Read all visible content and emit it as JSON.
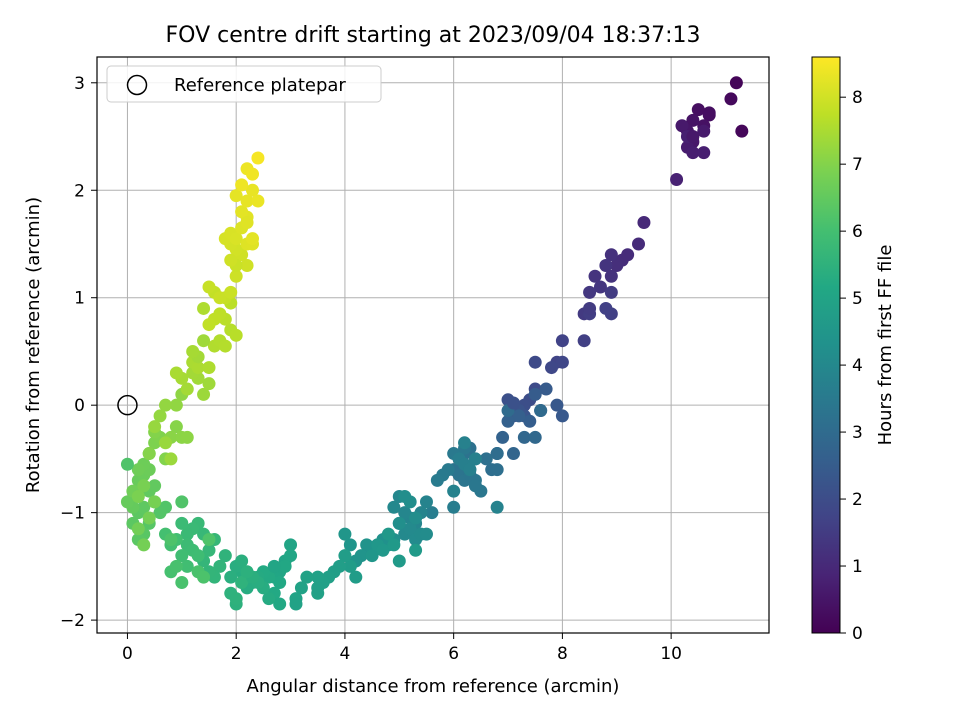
{
  "chart_data": {
    "type": "scatter",
    "title": "FOV centre drift starting at 2023/09/04 18:37:13",
    "xlabel": "Angular distance from reference (arcmin)",
    "ylabel": "Rotation from reference (arcmin)",
    "xlim": [
      -0.56,
      11.8
    ],
    "ylim": [
      -2.12,
      3.24
    ],
    "x_ticks": [
      0,
      2,
      4,
      6,
      8,
      10
    ],
    "y_ticks": [
      -2,
      -1,
      0,
      1,
      2,
      3
    ],
    "grid": true,
    "legend": {
      "placement": "top-left",
      "entries": [
        "Reference platepar"
      ]
    },
    "reference_point": {
      "x": 0,
      "y": 0,
      "label": "Reference platepar"
    },
    "colorbar": {
      "label": "Hours from first FF file",
      "colormap": "viridis",
      "range": [
        0,
        8.6
      ],
      "ticks": [
        0,
        1,
        2,
        3,
        4,
        5,
        6,
        7,
        8
      ]
    },
    "series": [
      {
        "x": [
          11.2,
          11.3,
          11.1,
          10.7,
          10.5,
          10.6,
          10.4,
          10.3,
          10.4,
          10.2,
          10.6,
          10.3,
          10.4,
          10.6,
          10.3,
          10.1,
          10.7,
          10.4
        ],
        "y": [
          3.0,
          2.55,
          2.85,
          2.7,
          2.75,
          2.6,
          2.65,
          2.55,
          2.45,
          2.6,
          2.55,
          2.4,
          2.35,
          2.35,
          2.5,
          2.1,
          2.72,
          2.5
        ],
        "hours": [
          0.1,
          0.15,
          0.2,
          0.3,
          0.35,
          0.4,
          0.45,
          0.5,
          0.55,
          0.6,
          0.62,
          0.65,
          0.7,
          0.72,
          0.75,
          0.8,
          0.33,
          0.58
        ]
      },
      {
        "x": [
          9.5,
          9.4,
          9.1,
          9.0,
          8.9,
          8.9,
          8.8,
          8.7,
          8.5,
          8.4,
          8.9,
          8.5,
          8.4,
          8.9,
          8.8,
          9.2,
          8.6,
          8.5
        ],
        "y": [
          1.7,
          1.5,
          1.35,
          1.3,
          1.4,
          1.2,
          1.3,
          1.1,
          1.05,
          0.85,
          1.05,
          0.85,
          0.6,
          0.85,
          0.9,
          1.4,
          1.2,
          0.9
        ],
        "hours": [
          1.0,
          1.05,
          1.1,
          1.15,
          1.2,
          1.25,
          1.3,
          1.35,
          1.4,
          1.45,
          1.5,
          1.55,
          1.6,
          1.62,
          1.65,
          1.08,
          1.28,
          1.5
        ]
      },
      {
        "x": [
          8.0,
          7.9,
          8.0,
          7.8,
          7.5,
          7.5,
          7.4,
          7.3,
          7.0,
          7.1,
          7.2,
          7.3,
          7.6,
          7.9,
          8.0,
          7.7,
          7.5,
          7.4,
          7.2,
          7.0,
          6.9,
          6.8,
          7.1,
          7.3,
          7.5,
          7.6,
          7.0,
          7.1
        ],
        "y": [
          0.6,
          0.4,
          0.4,
          0.35,
          0.4,
          0.15,
          0.05,
          0.0,
          0.05,
          -0.1,
          -0.05,
          -0.1,
          -0.05,
          0.0,
          -0.1,
          0.15,
          0.1,
          -0.15,
          -0.1,
          -0.15,
          -0.3,
          -0.45,
          -0.45,
          -0.3,
          -0.3,
          -0.05,
          -0.05,
          0.02
        ],
        "hours": [
          1.7,
          1.75,
          1.8,
          1.85,
          1.9,
          1.95,
          2.0,
          2.05,
          2.1,
          2.15,
          2.2,
          2.25,
          2.3,
          2.35,
          2.4,
          2.45,
          2.5,
          2.55,
          2.6,
          2.65,
          2.7,
          2.75,
          2.8,
          2.85,
          2.9,
          2.95,
          3.0,
          2.12
        ]
      },
      {
        "x": [
          6.8,
          6.7,
          6.8,
          6.6,
          6.4,
          6.3,
          6.2,
          6.1,
          6.0,
          6.1,
          6.2,
          6.3,
          6.4,
          6.5,
          6.4,
          6.2,
          6.0,
          5.9,
          5.8,
          5.7,
          5.6,
          6.0,
          6.1,
          6.2,
          6.3,
          6.4,
          6.2,
          6.0
        ],
        "y": [
          -0.45,
          -0.6,
          -0.6,
          -0.5,
          -0.5,
          -0.4,
          -0.45,
          -0.5,
          -0.6,
          -0.65,
          -0.7,
          -0.65,
          -0.7,
          -0.8,
          -0.75,
          -0.4,
          -0.45,
          -0.6,
          -0.65,
          -0.7,
          -1.0,
          -0.95,
          -0.5,
          -0.55,
          -0.6,
          -0.5,
          -0.35,
          -0.8
        ],
        "hours": [
          3.05,
          3.1,
          3.12,
          3.15,
          3.18,
          3.2,
          3.22,
          3.25,
          3.28,
          3.3,
          3.32,
          3.35,
          3.38,
          3.4,
          3.42,
          3.45,
          3.48,
          3.5,
          3.52,
          3.55,
          3.6,
          3.62,
          3.65,
          3.68,
          3.7,
          3.72,
          3.75,
          3.78
        ]
      },
      {
        "x": [
          6.8,
          5.5,
          5.4,
          5.3,
          5.2,
          5.1,
          5.0,
          4.9,
          5.0,
          5.1,
          5.2,
          5.3,
          5.4,
          5.5,
          5.3,
          5.2,
          5.1,
          5.0,
          4.9,
          4.8,
          4.7,
          4.6,
          4.5,
          4.4,
          4.3,
          4.2,
          4.1,
          4.0,
          4.5,
          4.6,
          4.7,
          4.8,
          4.9,
          5.0,
          5.3
        ],
        "y": [
          -0.95,
          -0.9,
          -1.0,
          -1.1,
          -1.05,
          -1.0,
          -0.85,
          -0.95,
          -1.1,
          -1.2,
          -1.15,
          -1.25,
          -1.2,
          -1.2,
          -1.05,
          -0.9,
          -0.85,
          -1.1,
          -1.25,
          -1.3,
          -1.25,
          -1.3,
          -1.35,
          -1.3,
          -1.4,
          -1.45,
          -1.3,
          -1.2,
          -1.4,
          -1.3,
          -1.35,
          -1.2,
          -1.3,
          -1.45,
          -1.35
        ],
        "hours": [
          3.8,
          3.82,
          3.85,
          3.88,
          3.9,
          3.92,
          3.95,
          3.98,
          4.0,
          4.02,
          4.05,
          4.08,
          4.1,
          4.12,
          4.15,
          4.18,
          4.2,
          4.22,
          4.25,
          4.28,
          4.3,
          4.32,
          4.35,
          4.38,
          4.4,
          4.42,
          4.45,
          4.48,
          4.5,
          4.52,
          4.55,
          4.58,
          4.6,
          4.62,
          4.65
        ]
      },
      {
        "x": [
          4.2,
          4.1,
          4.0,
          3.9,
          3.8,
          3.7,
          3.6,
          3.5,
          3.5,
          3.3,
          3.2,
          3.1,
          3.0,
          2.9,
          2.8,
          2.7,
          3.0,
          2.9,
          2.8,
          2.7,
          2.6,
          2.5,
          2.4,
          2.3,
          2.2,
          2.1,
          2.0,
          1.9,
          2.1,
          2.2,
          2.0,
          1.9,
          2.0,
          2.1,
          2.7,
          2.8,
          2.6,
          2.5,
          2.4,
          2.3,
          2.2,
          3.1,
          3.5
        ],
        "y": [
          -1.6,
          -1.5,
          -1.4,
          -1.5,
          -1.55,
          -1.6,
          -1.65,
          -1.6,
          -1.75,
          -1.6,
          -1.7,
          -1.8,
          -1.3,
          -1.45,
          -1.55,
          -1.6,
          -1.4,
          -1.5,
          -1.65,
          -1.75,
          -1.6,
          -1.55,
          -1.6,
          -1.65,
          -1.7,
          -1.55,
          -1.5,
          -1.6,
          -1.45,
          -1.6,
          -1.85,
          -1.75,
          -1.8,
          -1.65,
          -1.5,
          -1.85,
          -1.8,
          -1.7,
          -1.65,
          -1.6,
          -1.55,
          -1.85,
          -1.7
        ],
        "hours": [
          4.7,
          4.72,
          4.75,
          4.78,
          4.8,
          4.82,
          4.85,
          4.88,
          4.9,
          4.92,
          4.95,
          4.98,
          5.0,
          5.02,
          5.05,
          5.08,
          5.1,
          5.12,
          5.15,
          5.18,
          5.2,
          5.22,
          5.25,
          5.28,
          5.3,
          5.32,
          5.35,
          5.38,
          5.4,
          5.42,
          5.45,
          5.48,
          5.5,
          5.52,
          5.05,
          5.15,
          5.25,
          5.3,
          5.35,
          5.4,
          5.45,
          4.95,
          4.85
        ]
      },
      {
        "x": [
          1.8,
          1.7,
          1.6,
          1.5,
          1.4,
          1.5,
          1.6,
          1.4,
          1.3,
          1.2,
          1.1,
          1.0,
          1.1,
          1.2,
          1.3,
          1.0,
          1.1,
          0.9,
          0.8,
          0.7,
          0.8,
          0.9,
          1.0,
          1.3,
          1.4,
          0.8,
          1.5
        ],
        "y": [
          -1.4,
          -1.5,
          -1.6,
          -1.55,
          -1.45,
          -1.35,
          -1.25,
          -1.2,
          -1.1,
          -1.15,
          -1.2,
          -1.1,
          -1.3,
          -1.35,
          -1.4,
          -1.4,
          -1.5,
          -1.25,
          -1.3,
          -1.2,
          -1.55,
          -1.5,
          -1.65,
          -1.55,
          -1.6,
          -1.25,
          -1.25
        ],
        "hours": [
          5.55,
          5.58,
          5.6,
          5.62,
          5.65,
          5.68,
          5.7,
          5.72,
          5.75,
          5.78,
          5.8,
          5.82,
          5.85,
          5.88,
          5.9,
          5.92,
          5.95,
          5.98,
          6.0,
          6.02,
          6.05,
          6.08,
          6.1,
          6.12,
          6.15,
          6.18,
          6.2
        ]
      },
      {
        "x": [
          1.0,
          0.7,
          0.6,
          0.5,
          0.4,
          0.3,
          0.2,
          0.1,
          0.2,
          0.3,
          0.4,
          0.5,
          0.2,
          0.1,
          0.0,
          0.2,
          0.3,
          0.4,
          0.3,
          0.2,
          0.1,
          0.2,
          0.3,
          0.4,
          0.5,
          0.3,
          0.2,
          0.4,
          0.5,
          0.6,
          0.7,
          0.5,
          0.4
        ],
        "y": [
          -0.9,
          -0.95,
          -1.0,
          -0.9,
          -1.1,
          -1.2,
          -1.25,
          -1.1,
          -1.0,
          -0.95,
          -0.8,
          -0.75,
          -0.8,
          -0.95,
          -0.9,
          -0.7,
          -0.65,
          -0.6,
          -0.55,
          -0.6,
          -0.8,
          -1.15,
          -1.3,
          -1.05,
          -0.9,
          -0.75,
          -0.85,
          -0.45,
          -0.35,
          -0.3,
          -0.5,
          -0.25,
          -0.45
        ],
        "hours": [
          6.22,
          6.25,
          6.28,
          6.3,
          6.32,
          6.35,
          6.38,
          6.4,
          6.42,
          6.45,
          6.48,
          6.5,
          6.52,
          6.55,
          6.58,
          6.6,
          6.62,
          6.65,
          6.68,
          6.7,
          6.72,
          6.75,
          6.78,
          6.8,
          6.82,
          6.85,
          6.88,
          6.9,
          6.92,
          6.95,
          6.98,
          7.0,
          7.02
        ]
      },
      {
        "x": [
          0.0,
          0.9,
          0.8,
          1.0,
          1.1,
          1.0,
          0.9,
          0.7,
          0.6,
          0.5,
          0.7,
          0.8,
          1.4,
          1.5,
          1.3,
          1.2,
          1.1,
          1.0,
          0.9,
          1.2,
          1.3,
          1.5,
          1.6,
          1.7,
          1.8,
          1.9,
          2.0,
          1.8,
          1.9,
          1.7,
          1.6,
          1.5,
          1.4,
          1.3,
          1.2,
          1.4,
          1.6,
          1.8,
          1.5
        ],
        "y": [
          -0.55,
          -0.2,
          -0.3,
          -0.3,
          -0.3,
          0.1,
          0.0,
          0.0,
          -0.1,
          -0.2,
          -0.35,
          -0.5,
          0.1,
          0.2,
          0.25,
          0.3,
          0.15,
          0.25,
          0.3,
          0.4,
          0.35,
          0.35,
          0.55,
          0.6,
          0.55,
          0.7,
          0.65,
          0.8,
          0.95,
          0.85,
          0.8,
          0.75,
          0.6,
          0.45,
          0.5,
          0.9,
          1.05,
          1.0,
          1.1
        ],
        "hours": [
          6.2,
          7.05,
          7.08,
          7.1,
          7.12,
          7.15,
          7.18,
          7.2,
          7.22,
          7.25,
          7.28,
          7.3,
          7.32,
          7.35,
          7.38,
          7.4,
          7.42,
          7.45,
          7.48,
          7.5,
          7.52,
          7.55,
          7.58,
          7.6,
          7.62,
          7.65,
          7.68,
          7.7,
          7.72,
          7.75,
          7.78,
          7.8,
          7.35,
          7.4,
          7.45,
          7.55,
          7.82,
          7.85,
          7.88
        ]
      },
      {
        "x": [
          1.7,
          1.9,
          2.0,
          2.2,
          2.1,
          2.0,
          1.9,
          1.8,
          1.9,
          2.0,
          2.1,
          2.2,
          2.3,
          2.2,
          2.1,
          2.0,
          2.2,
          2.3,
          2.4,
          2.2,
          2.1,
          2.3,
          2.4,
          2.0,
          1.9,
          2.2,
          2.3
        ],
        "y": [
          1.0,
          1.05,
          1.2,
          1.3,
          1.4,
          1.45,
          1.5,
          1.55,
          1.6,
          1.55,
          1.65,
          1.5,
          1.5,
          1.75,
          1.8,
          1.95,
          1.9,
          2.0,
          1.9,
          2.2,
          2.05,
          2.15,
          2.3,
          1.3,
          1.35,
          1.7,
          1.55
        ],
        "hours": [
          7.9,
          7.92,
          7.95,
          7.98,
          8.0,
          8.02,
          8.05,
          8.08,
          8.1,
          8.12,
          8.15,
          8.18,
          8.2,
          8.22,
          8.25,
          8.28,
          8.3,
          8.32,
          8.35,
          8.38,
          8.4,
          8.42,
          8.5,
          7.92,
          7.98,
          8.2,
          8.25
        ]
      }
    ]
  }
}
